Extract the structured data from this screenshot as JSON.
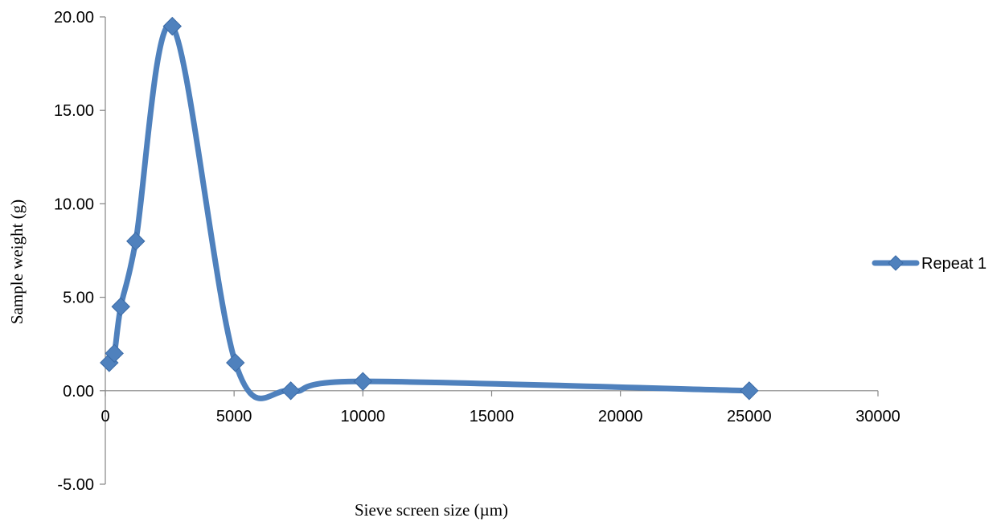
{
  "chart_data": {
    "type": "line",
    "title": "",
    "xlabel": "Sieve screen size (µm)",
    "ylabel": "Sample weight (g)",
    "xlim": [
      0,
      30000
    ],
    "ylim": [
      -5,
      20
    ],
    "x_ticks": [
      0,
      5000,
      10000,
      15000,
      20000,
      25000,
      30000
    ],
    "x_tick_labels": [
      "0",
      "5000",
      "10000",
      "15000",
      "20000",
      "25000",
      "30000"
    ],
    "y_ticks": [
      -5,
      0,
      5,
      10,
      15,
      20
    ],
    "y_tick_labels": [
      "-5.00",
      "0.00",
      "5.00",
      "10.00",
      "15.00",
      "20.00"
    ],
    "grid": false,
    "smooth": true,
    "legend_position": "right",
    "series": [
      {
        "name": "Repeat 1",
        "color": "#4f81bd",
        "marker": "diamond",
        "x": [
          150,
          350,
          600,
          1180,
          2600,
          5050,
          7200,
          10000,
          25000
        ],
        "y": [
          1.5,
          2.0,
          4.5,
          8.0,
          19.5,
          1.5,
          0.0,
          0.5,
          0.0
        ]
      }
    ]
  }
}
